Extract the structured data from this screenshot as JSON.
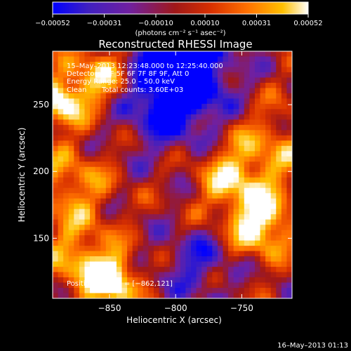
{
  "chart_data": {
    "type": "heatmap",
    "title": "Reconstructed RHESSI Image",
    "xlabel": "Heliocentric X (arcsec)",
    "ylabel": "Heliocentric Y (arcsec)",
    "xlim": [
      -893,
      -712
    ],
    "ylim": [
      105,
      290
    ],
    "x_ticks": [
      -850,
      -800,
      -750
    ],
    "y_ticks": [
      150,
      200,
      250
    ],
    "x_tick_labels": [
      "−850",
      "−800",
      "−750"
    ],
    "y_tick_labels": [
      "150",
      "200",
      "250"
    ],
    "colorbar": {
      "range": [
        -0.00052,
        0.00052
      ],
      "tick_values": [
        -0.00052,
        -0.00031,
        -0.0001,
        0.0001,
        0.00031,
        0.00052
      ],
      "tick_labels": [
        "−0.00052",
        "−0.00031",
        "−0.00010",
        "0.00010",
        "0.00031",
        "0.00052"
      ],
      "unit_label": "(photons cm⁻² s⁻¹ asec⁻²)",
      "colors": [
        "#0000ff",
        "#4020c0",
        "#7020a0",
        "#a01818",
        "#d83000",
        "#ff7000",
        "#ffc000",
        "#ffffff"
      ]
    },
    "annotations": {
      "time_range": "15–May–2013 12:23:48.000 to 12:25:40.000",
      "detectors": "Detectors: 3F 5F 6F 7F 8F 9F, Att 0",
      "energy_range": "Energy Range: 25.0 – 50.0 keV",
      "method": "Clean",
      "total_counts": "Total counts: 3.60E+03",
      "peak_position": "Position of Peak = [−862,121]"
    },
    "peak_position": [
      -862,
      121
    ]
  },
  "footer": {
    "timestamp": "16–May–2013 01:13"
  }
}
